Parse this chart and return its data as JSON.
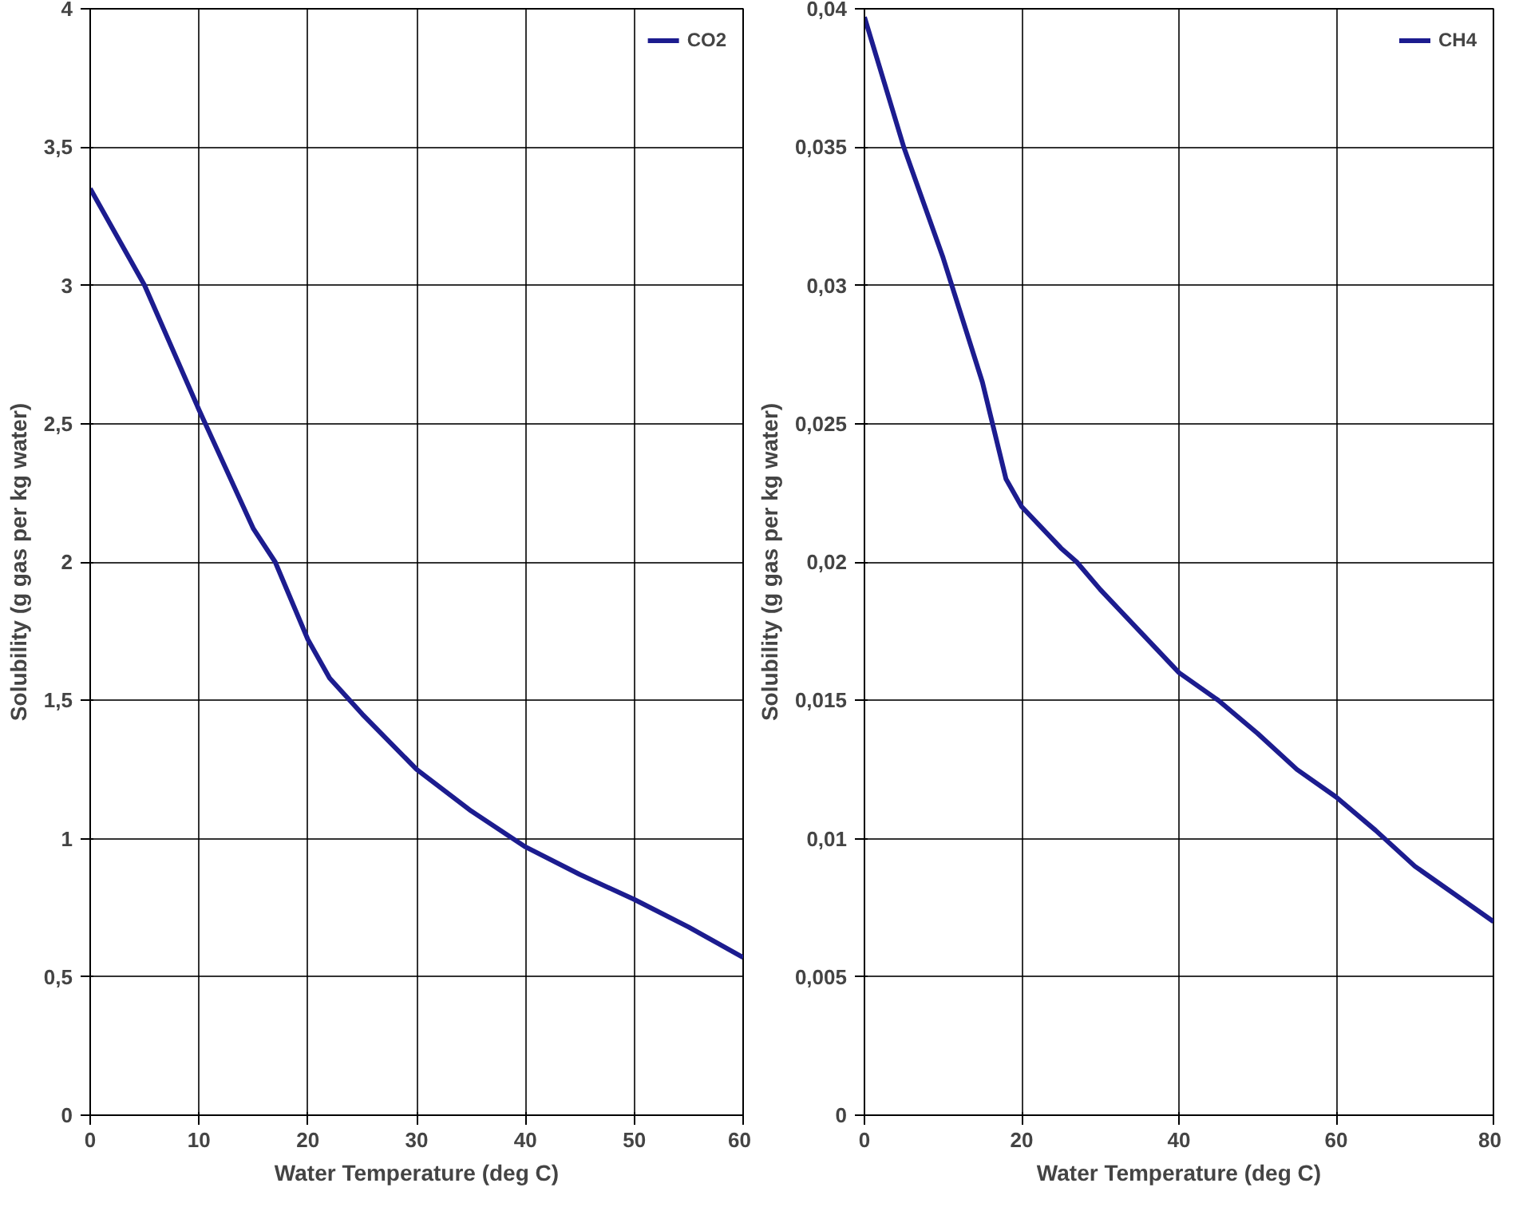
{
  "chart_data": [
    {
      "type": "line",
      "xlabel": "Water Temperature (deg C)",
      "ylabel": "Solubility (g gas per kg water)",
      "x": [
        0,
        5,
        10,
        15,
        17,
        20,
        22,
        25,
        30,
        35,
        40,
        45,
        50,
        55,
        60
      ],
      "series": [
        {
          "name": "CO2",
          "color": "#1c1c8f",
          "values": [
            3.35,
            3.0,
            2.55,
            2.12,
            2.0,
            1.72,
            1.58,
            1.45,
            1.25,
            1.1,
            0.97,
            0.87,
            0.78,
            0.68,
            0.57
          ]
        }
      ],
      "xlim": [
        0,
        60
      ],
      "ylim": [
        0,
        4
      ],
      "xticks": [
        0,
        10,
        20,
        30,
        40,
        50,
        60
      ],
      "yticks": [
        0,
        {
          "value": 0.5,
          "label": "0,5"
        },
        1,
        {
          "value": 1.5,
          "label": "1,5"
        },
        2,
        {
          "value": 2.5,
          "label": "2,5"
        },
        3,
        {
          "value": 3.5,
          "label": "3,5"
        },
        4
      ],
      "grid": true,
      "legend": "top right",
      "marker": "none",
      "line_style": "solid"
    },
    {
      "type": "line",
      "xlabel": "Water Temperature (deg C)",
      "ylabel": "Solubility (g gas per kg water)",
      "x": [
        0,
        5,
        10,
        15,
        18,
        20,
        25,
        27,
        30,
        35,
        40,
        45,
        50,
        55,
        60,
        65,
        70,
        75,
        80
      ],
      "series": [
        {
          "name": "CH4",
          "color": "#1c1c8f",
          "values": [
            0.0397,
            0.035,
            0.031,
            0.0265,
            0.023,
            0.022,
            0.0205,
            0.02,
            0.019,
            0.0175,
            0.016,
            0.015,
            0.0138,
            0.0125,
            0.0115,
            0.0103,
            0.009,
            0.008,
            0.007
          ]
        }
      ],
      "xlim": [
        0,
        80
      ],
      "ylim": [
        0,
        0.04
      ],
      "xticks": [
        0,
        20,
        40,
        60,
        80
      ],
      "yticks": [
        0,
        {
          "value": 0.005,
          "label": "0,005"
        },
        {
          "value": 0.01,
          "label": "0,01"
        },
        {
          "value": 0.015,
          "label": "0,015"
        },
        {
          "value": 0.02,
          "label": "0,02"
        },
        {
          "value": 0.025,
          "label": "0,025"
        },
        {
          "value": 0.03,
          "label": "0,03"
        },
        {
          "value": 0.035,
          "label": "0,035"
        },
        {
          "value": 0.04,
          "label": "0,04"
        }
      ],
      "grid": true,
      "legend": "top right",
      "marker": "none",
      "line_style": "solid"
    }
  ]
}
